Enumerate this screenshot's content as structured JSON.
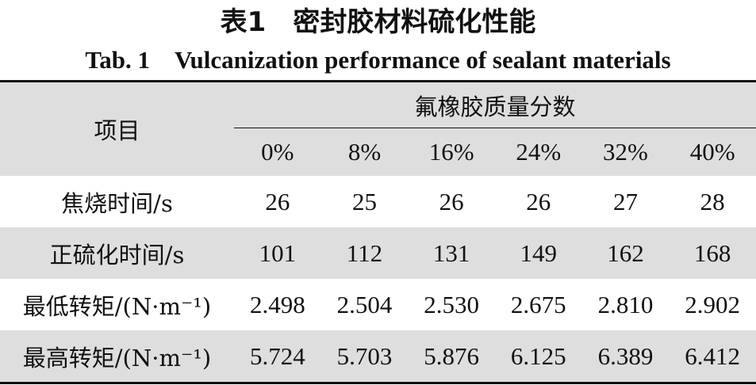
{
  "header": {
    "title": "表1　密封胶材料硫化性能",
    "subtitle": "Tab. 1　Vulcanization performance of sealant materials"
  },
  "table": {
    "corner": "项目",
    "group": "氟橡胶质量分数",
    "columns": [
      "0%",
      "8%",
      "16%",
      "24%",
      "32%",
      "40%"
    ],
    "rows": [
      [
        "焦烧时间/s",
        "26",
        "25",
        "26",
        "26",
        "27",
        "28"
      ],
      [
        "正硫化时间/s",
        "101",
        "112",
        "131",
        "149",
        "162",
        "168"
      ],
      [
        "最低转矩/(N·m⁻¹)",
        "2.498",
        "2.504",
        "2.530",
        "2.675",
        "2.810",
        "2.902"
      ],
      [
        "最高转矩/(N·m⁻¹)",
        "5.724",
        "5.703",
        "5.876",
        "6.125",
        "6.389",
        "6.412"
      ]
    ]
  }
}
